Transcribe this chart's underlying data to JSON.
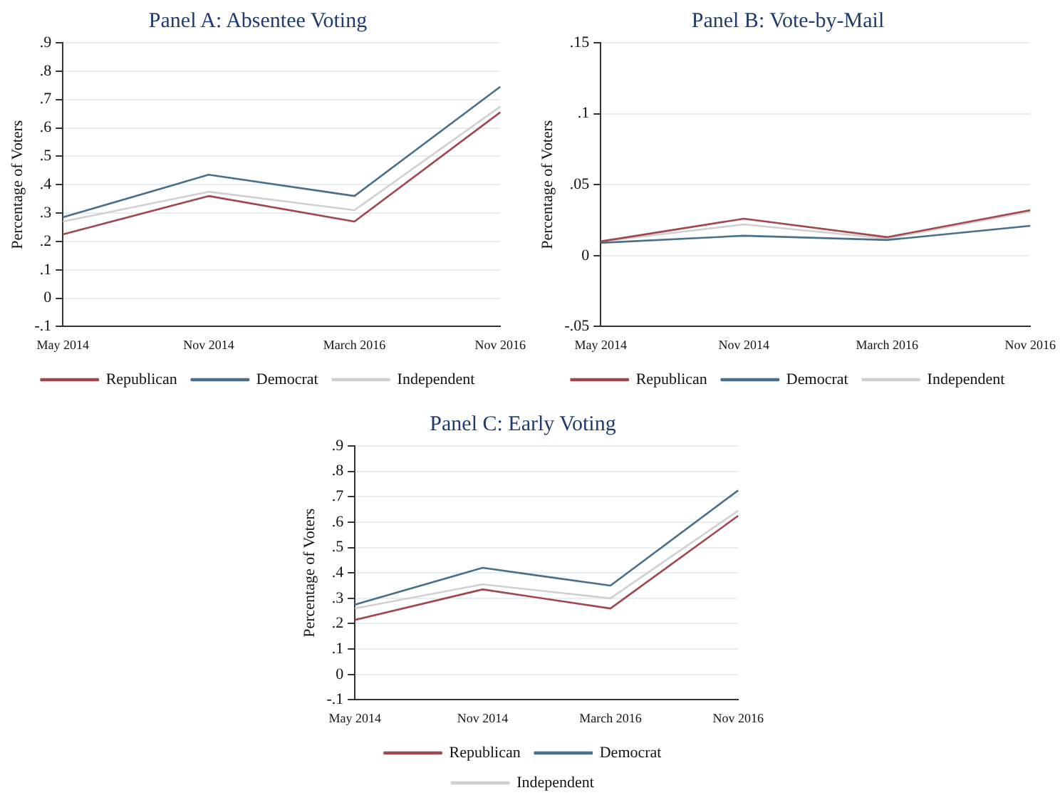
{
  "chart_data": [
    {
      "type": "line",
      "title": "Panel A: Absentee Voting",
      "ylabel": "Percentage of Voters",
      "categories": [
        "May 2014",
        "Nov 2014",
        "March 2016",
        "Nov 2016"
      ],
      "series": [
        {
          "name": "Republican",
          "color": "#a0474f",
          "values": [
            0.225,
            0.36,
            0.27,
            0.655
          ]
        },
        {
          "name": "Democrat",
          "color": "#4a6f8a",
          "values": [
            0.285,
            0.435,
            0.36,
            0.745
          ]
        },
        {
          "name": "Independent",
          "color": "#d0d0d0",
          "values": [
            0.27,
            0.375,
            0.31,
            0.675
          ]
        }
      ],
      "ylim": [
        -0.1,
        0.9
      ],
      "yticks": [
        {
          "value": -0.1,
          "label": "-.1"
        },
        {
          "value": 0,
          "label": "0"
        },
        {
          "value": 0.1,
          "label": ".1"
        },
        {
          "value": 0.2,
          "label": ".2"
        },
        {
          "value": 0.3,
          "label": ".3"
        },
        {
          "value": 0.4,
          "label": ".4"
        },
        {
          "value": 0.5,
          "label": ".5"
        },
        {
          "value": 0.6,
          "label": ".6"
        },
        {
          "value": 0.7,
          "label": ".7"
        },
        {
          "value": 0.8,
          "label": ".8"
        },
        {
          "value": 0.9,
          "label": ".9"
        }
      ],
      "grid": "y",
      "legend": "bottom",
      "marker": "none"
    },
    {
      "type": "line",
      "title": "Panel B: Vote-by-Mail",
      "ylabel": "Percentage of Voters",
      "categories": [
        "May 2014",
        "Nov 2014",
        "March 2016",
        "Nov 2016"
      ],
      "series": [
        {
          "name": "Republican",
          "color": "#a0474f",
          "values": [
            0.01,
            0.026,
            0.013,
            0.032
          ]
        },
        {
          "name": "Democrat",
          "color": "#4a6f8a",
          "values": [
            0.009,
            0.014,
            0.011,
            0.021
          ]
        },
        {
          "name": "Independent",
          "color": "#d0d0d0",
          "values": [
            0.01,
            0.022,
            0.012,
            0.031
          ]
        }
      ],
      "ylim": [
        -0.05,
        0.15
      ],
      "yticks": [
        {
          "value": -0.05,
          "label": "-.05"
        },
        {
          "value": 0,
          "label": "0"
        },
        {
          "value": 0.05,
          "label": ".05"
        },
        {
          "value": 0.1,
          "label": ".1"
        },
        {
          "value": 0.15,
          "label": ".15"
        }
      ],
      "grid": "y",
      "legend": "bottom",
      "marker": "none"
    },
    {
      "type": "line",
      "title": "Panel C: Early Voting",
      "ylabel": "Percentage of Voters",
      "categories": [
        "May 2014",
        "Nov 2014",
        "March 2016",
        "Nov 2016"
      ],
      "series": [
        {
          "name": "Republican",
          "color": "#a0474f",
          "values": [
            0.215,
            0.335,
            0.26,
            0.625
          ]
        },
        {
          "name": "Democrat",
          "color": "#4a6f8a",
          "values": [
            0.275,
            0.42,
            0.35,
            0.725
          ]
        },
        {
          "name": "Independent",
          "color": "#d0d0d0",
          "values": [
            0.26,
            0.355,
            0.3,
            0.645
          ]
        }
      ],
      "ylim": [
        -0.1,
        0.9
      ],
      "yticks": [
        {
          "value": -0.1,
          "label": "-.1"
        },
        {
          "value": 0,
          "label": "0"
        },
        {
          "value": 0.1,
          "label": ".1"
        },
        {
          "value": 0.2,
          "label": ".2"
        },
        {
          "value": 0.3,
          "label": ".3"
        },
        {
          "value": 0.4,
          "label": ".4"
        },
        {
          "value": 0.5,
          "label": ".5"
        },
        {
          "value": 0.6,
          "label": ".6"
        },
        {
          "value": 0.7,
          "label": ".7"
        },
        {
          "value": 0.8,
          "label": ".8"
        },
        {
          "value": 0.9,
          "label": ".9"
        }
      ],
      "grid": "y",
      "legend": "bottom",
      "marker": "none"
    }
  ]
}
